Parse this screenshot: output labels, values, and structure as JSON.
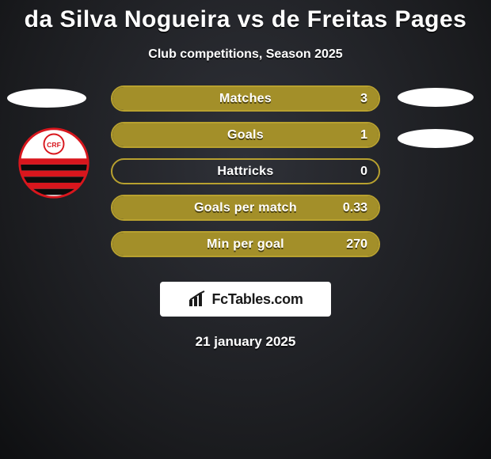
{
  "title": "da Silva Nogueira vs de Freitas Pages",
  "subtitle": "Club competitions, Season 2025",
  "date": "21 january 2025",
  "brand": "FcTables.com",
  "bar_border_color": "#b8a12f",
  "bar_fill_color": "#a38f29",
  "bars": [
    {
      "label": "Matches",
      "value": "3",
      "fill_pct": 100
    },
    {
      "label": "Goals",
      "value": "1",
      "fill_pct": 100
    },
    {
      "label": "Hattricks",
      "value": "0",
      "fill_pct": 0
    },
    {
      "label": "Goals per match",
      "value": "0.33",
      "fill_pct": 100
    },
    {
      "label": "Min per goal",
      "value": "270",
      "fill_pct": 100
    }
  ],
  "club_logo": {
    "bg": "#ffffff",
    "stripe_red": "#d8161d",
    "stripe_black": "#0c0c0c",
    "crf_text": "CRF"
  }
}
